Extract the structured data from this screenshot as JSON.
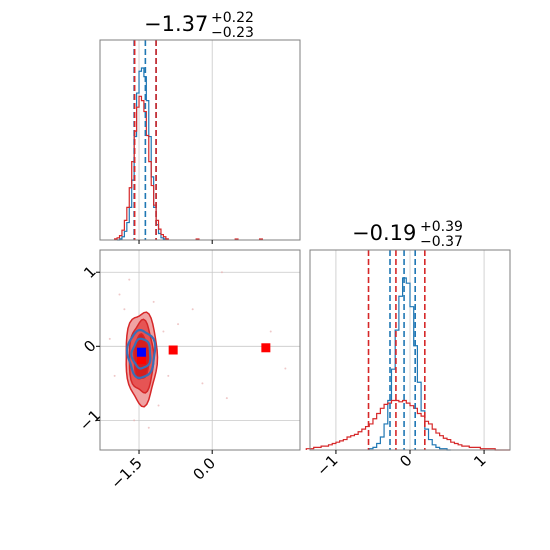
{
  "chart_data": [
    {
      "type": "histogram",
      "panel": "marginal-param-1",
      "title": {
        "value": "−1.37",
        "upper": "+0.22",
        "lower": "−0.23"
      },
      "xlim": [
        -2.3,
        1.8
      ],
      "xticks": [
        -1.5,
        0.0
      ],
      "grid": true,
      "series": [
        {
          "color": "#1f77b4",
          "bin_edges": [
            -1.95,
            -1.9,
            -1.85,
            -1.8,
            -1.75,
            -1.7,
            -1.65,
            -1.6,
            -1.55,
            -1.5,
            -1.45,
            -1.4,
            -1.35,
            -1.3,
            -1.25,
            -1.2,
            -1.15,
            -1.1,
            -1.05,
            -1.0,
            -0.95
          ],
          "counts": [
            0,
            1,
            3,
            8,
            16,
            30,
            55,
            95,
            135,
            155,
            158,
            150,
            128,
            95,
            58,
            30,
            14,
            6,
            2,
            1
          ],
          "quantiles": [
            -1.6,
            -1.37,
            -1.15
          ]
        },
        {
          "color": "#d62728",
          "bin_edges": [
            -2.0,
            -1.95,
            -1.9,
            -1.85,
            -1.8,
            -1.75,
            -1.7,
            -1.65,
            -1.6,
            -1.55,
            -1.5,
            -1.45,
            -1.4,
            -1.35,
            -1.3,
            -1.25,
            -1.2,
            -1.15,
            -1.1,
            -1.05,
            -1.0,
            -0.95,
            -0.9
          ],
          "counts": [
            1,
            2,
            4,
            9,
            18,
            30,
            48,
            72,
            100,
            122,
            132,
            128,
            118,
            96,
            72,
            50,
            32,
            18,
            10,
            5,
            3,
            1
          ],
          "outliers_x": [
            -0.3,
            0.5,
            1.0
          ],
          "quantiles": [
            -1.59,
            -1.37,
            -1.15
          ]
        }
      ]
    },
    {
      "type": "histogram",
      "panel": "marginal-param-2",
      "title": {
        "value": "−0.19",
        "upper": "+0.39",
        "lower": "−0.37"
      },
      "xlim": [
        -1.35,
        1.35
      ],
      "xticks": [
        -1,
        0,
        1
      ],
      "grid": true,
      "series": [
        {
          "color": "#1f77b4",
          "bin_edges": [
            -0.55,
            -0.5,
            -0.45,
            -0.4,
            -0.35,
            -0.3,
            -0.25,
            -0.2,
            -0.15,
            -0.1,
            -0.05,
            0.0,
            0.05,
            0.1,
            0.15,
            0.2,
            0.25,
            0.3,
            0.35,
            0.4,
            0.45,
            0.5,
            0.55
          ],
          "counts": [
            1,
            2,
            5,
            10,
            20,
            38,
            62,
            92,
            118,
            132,
            128,
            110,
            80,
            52,
            30,
            16,
            8,
            4,
            2,
            1,
            1,
            0
          ],
          "quantiles": [
            -0.27,
            -0.08,
            0.07
          ]
        },
        {
          "color": "#d62728",
          "bin_edges": [
            -1.4,
            -1.35,
            -1.3,
            -1.25,
            -1.2,
            -1.15,
            -1.1,
            -1.05,
            -1.0,
            -0.95,
            -0.9,
            -0.85,
            -0.8,
            -0.75,
            -0.7,
            -0.65,
            -0.6,
            -0.55,
            -0.5,
            -0.45,
            -0.4,
            -0.35,
            -0.3,
            -0.25,
            -0.2,
            -0.15,
            -0.1,
            -0.05,
            0.0,
            0.05,
            0.1,
            0.15,
            0.2,
            0.25,
            0.3,
            0.35,
            0.4,
            0.45,
            0.5,
            0.55,
            0.6,
            0.65,
            0.7,
            0.75,
            0.8,
            0.85,
            0.9,
            0.95,
            1.0,
            1.05,
            1.1,
            1.15,
            1.2,
            1.25,
            1.3,
            1.35
          ],
          "counts": [
            1,
            1,
            2,
            2,
            3,
            3,
            4,
            5,
            6,
            7,
            8,
            10,
            11,
            12,
            14,
            16,
            18,
            20,
            24,
            28,
            32,
            35,
            36,
            38,
            38,
            37,
            38,
            36,
            34,
            32,
            28,
            26,
            22,
            20,
            16,
            13,
            11,
            9,
            8,
            6,
            5,
            4,
            3,
            3,
            2,
            2,
            2,
            1,
            1,
            1,
            1,
            0,
            0,
            0,
            0
          ],
          "quantiles": [
            -0.56,
            -0.19,
            0.2
          ]
        }
      ]
    },
    {
      "type": "scatter",
      "panel": "joint-param-1-param-2",
      "xlim": [
        -2.3,
        1.8
      ],
      "ylim": [
        -1.4,
        1.3
      ],
      "xticks": [
        -1.5,
        0.0
      ],
      "yticks": [
        -1,
        0,
        1
      ],
      "grid": true,
      "series": [
        {
          "color": "#d62728",
          "contour_center": [
            -1.45,
            -0.15
          ],
          "contour_radii": [
            [
              0.32,
              0.62
            ],
            [
              0.25,
              0.48
            ],
            [
              0.16,
              0.3
            ]
          ],
          "contour_fills": [
            "#f0a3a3",
            "#e65454",
            "#d41f1f"
          ],
          "markers": [
            [
              -1.45,
              -0.18
            ],
            [
              -0.8,
              -0.05
            ],
            [
              1.1,
              -0.02
            ]
          ]
        },
        {
          "color": "#3a6fb6",
          "contour_center": [
            -1.45,
            -0.1
          ],
          "contour_radii": [
            [
              0.28,
              0.32
            ],
            [
              0.19,
              0.2
            ]
          ],
          "markers": [
            [
              -1.45,
              -0.08
            ]
          ]
        }
      ],
      "scatter_points": [
        [
          -1.8,
          0.5
        ],
        [
          -1.9,
          0.7
        ],
        [
          -1.2,
          0.6
        ],
        [
          -1.1,
          -0.8
        ],
        [
          -2.0,
          -0.4
        ],
        [
          -1.0,
          0.2
        ],
        [
          -0.7,
          0.3
        ],
        [
          -0.4,
          0.5
        ],
        [
          0.2,
          1.0
        ],
        [
          1.5,
          -0.3
        ],
        [
          0.3,
          -0.7
        ],
        [
          -0.2,
          -0.5
        ],
        [
          -1.6,
          -1.0
        ],
        [
          -1.3,
          -1.1
        ],
        [
          -2.1,
          0.1
        ],
        [
          -0.9,
          -0.4
        ],
        [
          -1.7,
          0.9
        ],
        [
          1.2,
          0.2
        ]
      ]
    }
  ]
}
